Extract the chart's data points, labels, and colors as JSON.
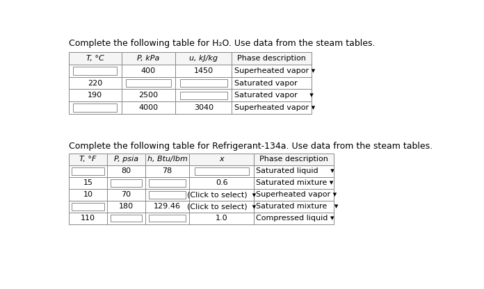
{
  "title1": "Complete the following table for H₂O. Use data from the steam tables.",
  "title2": "Complete the following table for Refrigerant-134a. Use data from the steam tables.",
  "table1": {
    "headers": [
      "T, °C",
      "P, kPa",
      "u, kJ/kg",
      "Phase description"
    ],
    "rows": [
      [
        "",
        "400",
        "1450",
        "Superheated vapor ▾"
      ],
      [
        "220",
        "",
        "",
        "Saturated vapor"
      ],
      [
        "190",
        "2500",
        "",
        "Saturated vapor     ▾"
      ],
      [
        "",
        "4000",
        "3040",
        "Superheated vapor ▾"
      ]
    ],
    "text_align": [
      "center",
      "center",
      "center",
      "left"
    ],
    "input_boxes": [
      {
        "row": 0,
        "col": 0,
        "inner": true
      },
      {
        "row": 1,
        "col": 1,
        "inner": true
      },
      {
        "row": 1,
        "col": 2,
        "inner": true
      },
      {
        "row": 2,
        "col": 2,
        "inner": true
      },
      {
        "row": 3,
        "col": 0,
        "inner": true
      }
    ]
  },
  "table2": {
    "headers": [
      "T, °F",
      "P, psia",
      "h, Btu/lbm",
      "x",
      "Phase description"
    ],
    "rows": [
      [
        "",
        "80",
        "78",
        "",
        "Saturated liquid     ▾"
      ],
      [
        "15",
        "",
        "",
        "0.6",
        "Saturated mixture ▾"
      ],
      [
        "10",
        "70",
        "",
        "(Click to select)  ▾",
        "Superheated vapor ▾"
      ],
      [
        "",
        "180",
        "129.46",
        "(Click to select)  ▾",
        "Saturated mixture   ▾"
      ],
      [
        "110",
        "",
        "",
        "1.0",
        "Compressed liquid ▾"
      ]
    ],
    "text_align": [
      "center",
      "center",
      "center",
      "center",
      "left"
    ],
    "input_boxes": [
      {
        "row": 0,
        "col": 0,
        "inner": true
      },
      {
        "row": 0,
        "col": 3,
        "inner": true
      },
      {
        "row": 1,
        "col": 1,
        "inner": true
      },
      {
        "row": 1,
        "col": 2,
        "inner": true
      },
      {
        "row": 2,
        "col": 2,
        "inner": true
      },
      {
        "row": 3,
        "col": 0,
        "inner": true
      },
      {
        "row": 4,
        "col": 1,
        "inner": true
      },
      {
        "row": 4,
        "col": 2,
        "inner": true
      }
    ]
  },
  "bg_color": "#ffffff",
  "text_color": "#000000",
  "cell_bg": "#ffffff",
  "header_bg": "#f5f5f5",
  "input_box_bg": "#ffffff",
  "border_color": "#888888",
  "font_size": 8.0,
  "title_font_size": 9.0
}
